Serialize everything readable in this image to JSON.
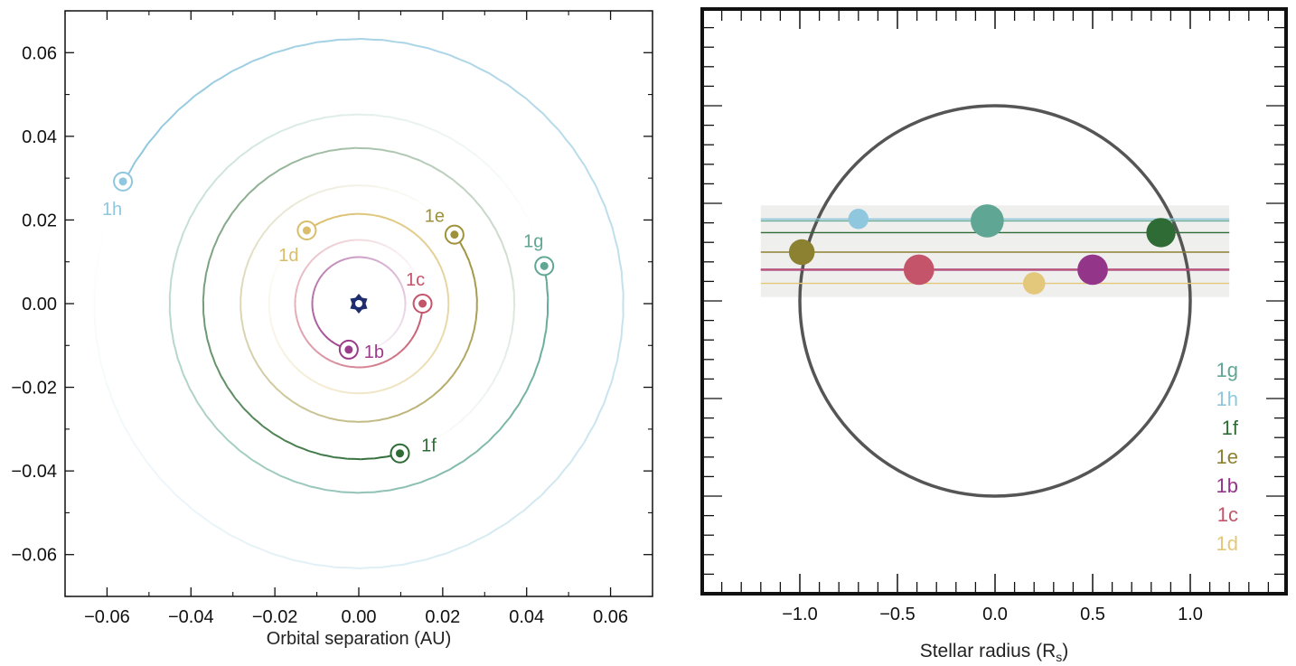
{
  "chart_data": [
    {
      "type": "line",
      "xlabel": "Orbital separation (AU)",
      "xlim": [
        -0.07,
        0.07
      ],
      "ylim": [
        -0.07,
        0.07
      ],
      "x_ticks": [
        -0.06,
        -0.04,
        -0.02,
        0.0,
        0.02,
        0.04,
        0.06
      ],
      "y_ticks": [
        -0.06,
        -0.04,
        -0.02,
        0.0,
        0.02,
        0.04,
        0.06
      ],
      "x_tick_labels": [
        "−0.06",
        "−0.04",
        "−0.02",
        "0.00",
        "0.02",
        "0.04",
        "0.06"
      ],
      "y_tick_labels": [
        "−0.06",
        "−0.04",
        "−0.02",
        "0.00",
        "0.02",
        "0.04",
        "0.06"
      ],
      "star_icon": "star-icon",
      "star_color": "#1f2d6e",
      "planets": [
        {
          "name": "1b",
          "a": 0.0111,
          "x": -0.0024,
          "y": -0.011,
          "color": "#9b3b8b"
        },
        {
          "name": "1c",
          "a": 0.0152,
          "x": 0.0152,
          "y": 0.0,
          "color": "#c4546a"
        },
        {
          "name": "1d",
          "a": 0.0214,
          "x": -0.0124,
          "y": 0.0175,
          "color": "#d9bd6a"
        },
        {
          "name": "1e",
          "a": 0.0282,
          "x": 0.0228,
          "y": 0.0165,
          "color": "#9e913a"
        },
        {
          "name": "1f",
          "a": 0.0371,
          "x": 0.0098,
          "y": -0.0358,
          "color": "#2e6b35"
        },
        {
          "name": "1g",
          "a": 0.0451,
          "x": 0.0442,
          "y": 0.009,
          "color": "#5fa794"
        },
        {
          "name": "1h",
          "a": 0.0631,
          "x": -0.0562,
          "y": 0.0292,
          "color": "#8fc7de"
        }
      ]
    },
    {
      "type": "scatter",
      "xlabel": "Stellar radius (R",
      "xlabel_sub": "s",
      "xlabel_close": ")",
      "xlim": [
        -1.5,
        1.5
      ],
      "ylim": [
        -1.1,
        1.1
      ],
      "x_ticks": [
        -1.0,
        -0.5,
        0.0,
        0.5,
        1.0
      ],
      "x_tick_labels": [
        "−1.0",
        "−0.5",
        "0.0",
        "0.5",
        "1.0"
      ],
      "stellar_disk_radius": 1.0,
      "transit_band": [
        0.02,
        0.49
      ],
      "transit_band_xlim": [
        -1.2,
        1.2
      ],
      "transits": [
        {
          "name": "1h",
          "y": 0.42,
          "points": [
            {
              "x": -0.7,
              "r": 0.052
            }
          ],
          "color": "#8fc7de"
        },
        {
          "name": "1g",
          "y": 0.41,
          "points": [
            {
              "x": -0.04,
              "r": 0.085
            }
          ],
          "color": "#5fa794"
        },
        {
          "name": "1f",
          "y": 0.35,
          "points": [
            {
              "x": 0.85,
              "r": 0.075
            }
          ],
          "color": "#2e6b35"
        },
        {
          "name": "1e",
          "y": 0.25,
          "points": [
            {
              "x": -0.99,
              "r": 0.066
            }
          ],
          "color": "#8c8131"
        },
        {
          "name": "1b",
          "y": 0.16,
          "points": [
            {
              "x": 0.5,
              "r": 0.078
            }
          ],
          "color": "#93368a"
        },
        {
          "name": "1c",
          "y": 0.16,
          "points": [
            {
              "x": -0.39,
              "r": 0.078
            }
          ],
          "color": "#c4546a"
        },
        {
          "name": "1d",
          "y": 0.09,
          "points": [
            {
              "x": 0.2,
              "r": 0.057
            }
          ],
          "color": "#e3c77a"
        }
      ],
      "legend": [
        {
          "name": "1g",
          "color": "#5fa794"
        },
        {
          "name": "1h",
          "color": "#8fc7de"
        },
        {
          "name": "1f",
          "color": "#2e6b35"
        },
        {
          "name": "1e",
          "color": "#8c8131"
        },
        {
          "name": "1b",
          "color": "#93368a"
        },
        {
          "name": "1c",
          "color": "#c4546a"
        },
        {
          "name": "1d",
          "color": "#e3c77a"
        }
      ],
      "legend_placement": "bottom-right"
    }
  ]
}
